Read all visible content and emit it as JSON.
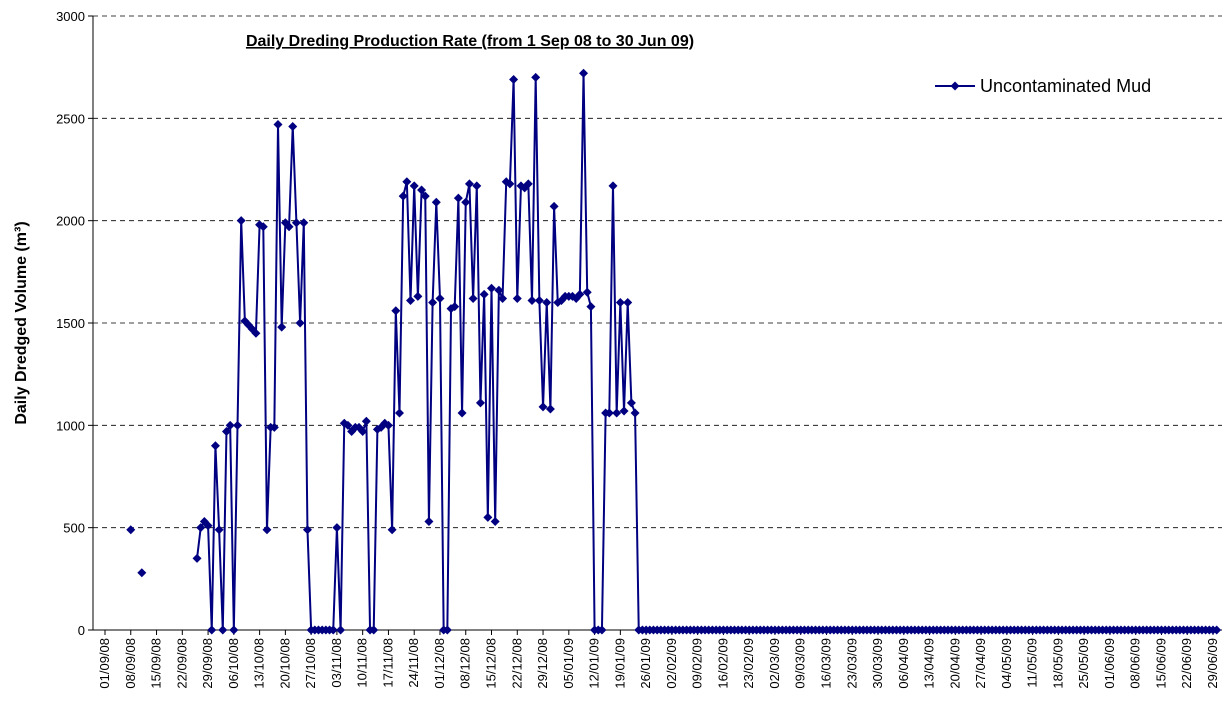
{
  "chart_data": {
    "type": "line",
    "title": "Daily Dreding Production Rate (from 1 Sep 08 to 30 Jun 09)",
    "y_label": "Daily Dredged Volume (m³)",
    "legend": "top-right",
    "grid": true,
    "ylim": [
      0,
      3000
    ],
    "yticks": [
      0,
      500,
      1000,
      1500,
      2000,
      2500,
      3000
    ],
    "categories": [
      "01/09/08",
      null,
      null,
      null,
      null,
      null,
      null,
      "08/09/08",
      null,
      null,
      null,
      null,
      null,
      null,
      "15/09/08",
      null,
      null,
      null,
      null,
      null,
      null,
      "22/09/08",
      null,
      null,
      null,
      null,
      null,
      null,
      "29/09/08",
      null,
      null,
      null,
      null,
      null,
      null,
      "06/10/08",
      null,
      null,
      null,
      null,
      null,
      null,
      "13/10/08",
      null,
      null,
      null,
      null,
      null,
      null,
      "20/10/08",
      null,
      null,
      null,
      null,
      null,
      null,
      "27/10/08",
      null,
      null,
      null,
      null,
      null,
      null,
      "03/11/08",
      null,
      null,
      null,
      null,
      null,
      null,
      "10/11/08",
      null,
      null,
      null,
      null,
      null,
      null,
      "17/11/08",
      null,
      null,
      null,
      null,
      null,
      null,
      "24/11/08",
      null,
      null,
      null,
      null,
      null,
      null,
      "01/12/08",
      null,
      null,
      null,
      null,
      null,
      null,
      "08/12/08",
      null,
      null,
      null,
      null,
      null,
      null,
      "15/12/08",
      null,
      null,
      null,
      null,
      null,
      null,
      "22/12/08",
      null,
      null,
      null,
      null,
      null,
      null,
      "29/12/08",
      null,
      null,
      null,
      null,
      null,
      null,
      "05/01/09",
      null,
      null,
      null,
      null,
      null,
      null,
      "12/01/09",
      null,
      null,
      null,
      null,
      null,
      null,
      "19/01/09",
      null,
      null,
      null,
      null,
      null,
      null,
      "26/01/09",
      null,
      null,
      null,
      null,
      null,
      null,
      "02/02/09",
      null,
      null,
      null,
      null,
      null,
      null,
      "09/02/09",
      null,
      null,
      null,
      null,
      null,
      null,
      "16/02/09",
      null,
      null,
      null,
      null,
      null,
      null,
      "23/02/09",
      null,
      null,
      null,
      null,
      null,
      null,
      "02/03/09",
      null,
      null,
      null,
      null,
      null,
      null,
      "09/03/09",
      null,
      null,
      null,
      null,
      null,
      null,
      "16/03/09",
      null,
      null,
      null,
      null,
      null,
      null,
      "23/03/09",
      null,
      null,
      null,
      null,
      null,
      null,
      "30/03/09",
      null,
      null,
      null,
      null,
      null,
      null,
      "06/04/09",
      null,
      null,
      null,
      null,
      null,
      null,
      "13/04/09",
      null,
      null,
      null,
      null,
      null,
      null,
      "20/04/09",
      null,
      null,
      null,
      null,
      null,
      null,
      "27/04/09",
      null,
      null,
      null,
      null,
      null,
      null,
      "04/05/09",
      null,
      null,
      null,
      null,
      null,
      null,
      "11/05/09",
      null,
      null,
      null,
      null,
      null,
      null,
      "18/05/09",
      null,
      null,
      null,
      null,
      null,
      null,
      "25/05/09",
      null,
      null,
      null,
      null,
      null,
      null,
      "01/06/09",
      null,
      null,
      null,
      null,
      null,
      null,
      "08/06/09",
      null,
      null,
      null,
      null,
      null,
      null,
      "15/06/09",
      null,
      null,
      null,
      null,
      null,
      null,
      "22/06/09",
      null,
      null,
      null,
      null,
      null,
      null,
      "29/06/09",
      null
    ],
    "series": [
      {
        "name": "Uncontaminated Mud",
        "color": "#000080",
        "values": [
          null,
          null,
          null,
          null,
          null,
          null,
          null,
          490,
          null,
          null,
          280,
          null,
          null,
          null,
          null,
          null,
          null,
          null,
          null,
          null,
          null,
          null,
          null,
          null,
          null,
          350,
          500,
          530,
          510,
          0,
          900,
          490,
          0,
          970,
          1000,
          0,
          1000,
          2000,
          1510,
          1490,
          1470,
          1450,
          1980,
          1970,
          490,
          990,
          990,
          2470,
          1480,
          1990,
          1970,
          2460,
          1990,
          1500,
          1990,
          490,
          0,
          0,
          0,
          0,
          0,
          0,
          0,
          500,
          0,
          1010,
          1000,
          970,
          990,
          990,
          970,
          1020,
          0,
          0,
          980,
          990,
          1010,
          1000,
          490,
          1560,
          1060,
          2120,
          2190,
          1610,
          2170,
          1630,
          2150,
          2120,
          530,
          1600,
          2090,
          1620,
          0,
          0,
          1570,
          1580,
          2110,
          1060,
          2090,
          2180,
          1620,
          2170,
          1110,
          1640,
          550,
          1670,
          530,
          1660,
          1620,
          2190,
          2180,
          2690,
          1620,
          2170,
          2160,
          2180,
          1610,
          2700,
          1610,
          1090,
          1600,
          1080,
          2070,
          1600,
          1610,
          1630,
          1630,
          1630,
          1620,
          1640,
          2720,
          1650,
          1580,
          0,
          0,
          0,
          1060,
          1060,
          2170,
          1060,
          1600,
          1070,
          1600,
          1110,
          1060,
          0,
          0,
          0,
          0,
          0,
          0,
          0,
          0,
          0,
          0,
          0,
          0,
          0,
          0,
          0,
          0,
          0,
          0,
          0,
          0,
          0,
          0,
          0,
          0,
          0,
          0,
          0,
          0,
          0,
          0,
          0,
          0,
          0,
          0,
          0,
          0,
          0,
          0,
          0,
          0,
          0,
          0,
          0,
          0,
          0,
          0,
          0,
          0,
          0,
          0,
          0,
          0,
          0,
          0,
          0,
          0,
          0,
          0,
          0,
          0,
          0,
          0,
          0,
          0,
          0,
          0,
          0,
          0,
          0,
          0,
          0,
          0,
          0,
          0,
          0,
          0,
          0,
          0,
          0,
          0,
          0,
          0,
          0,
          0,
          0,
          0,
          0,
          0,
          0,
          0,
          0,
          0,
          0,
          0,
          0,
          0,
          0,
          0,
          0,
          0,
          0,
          0,
          0,
          0,
          0,
          0,
          0,
          0,
          0,
          0,
          0,
          0,
          0,
          0,
          0,
          0,
          0,
          0,
          0,
          0,
          0,
          0,
          0,
          0,
          0,
          0,
          0,
          0,
          0,
          0,
          0,
          0,
          0,
          0,
          0,
          0,
          0,
          0,
          0,
          0,
          0,
          0,
          0,
          0,
          0,
          0,
          0,
          0,
          0,
          0,
          0,
          0,
          0,
          0,
          0,
          0,
          0,
          0
        ]
      }
    ]
  }
}
